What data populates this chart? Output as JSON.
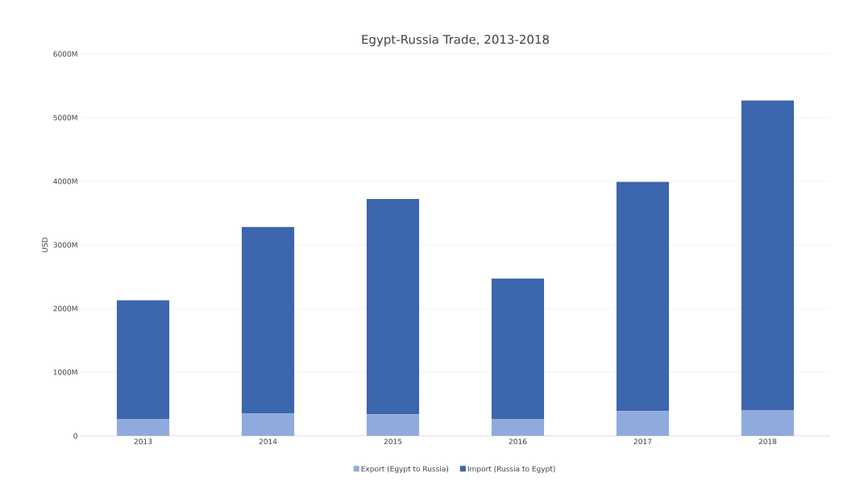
{
  "chart_data": {
    "type": "bar",
    "title": "Egypt-Russia Trade, 2013-2018",
    "ylabel": "USD",
    "stacked": true,
    "grid": "y",
    "legend": "bottom",
    "categories": [
      "2013",
      "2014",
      "2015",
      "2016",
      "2017",
      "2018"
    ],
    "series": [
      {
        "name": "Export (Egypt to Russia)",
        "color": "#8faadc",
        "values": [
          260,
          350,
          340,
          260,
          390,
          400
        ]
      },
      {
        "name": "Import (Russia to Egypt)",
        "color": "#3c66ad",
        "values": [
          1870,
          2930,
          3380,
          2210,
          3600,
          4870
        ]
      }
    ],
    "ylim": [
      0,
      6000
    ],
    "yticks": [
      0,
      {
        "value": 1000,
        "label": "1000M"
      },
      {
        "value": 2000,
        "label": "2000M"
      },
      {
        "value": 3000,
        "label": "3000M"
      },
      {
        "value": 4000,
        "label": "4000M"
      },
      {
        "value": 5000,
        "label": "5000M"
      },
      {
        "value": 6000,
        "label": "6000M"
      }
    ]
  }
}
